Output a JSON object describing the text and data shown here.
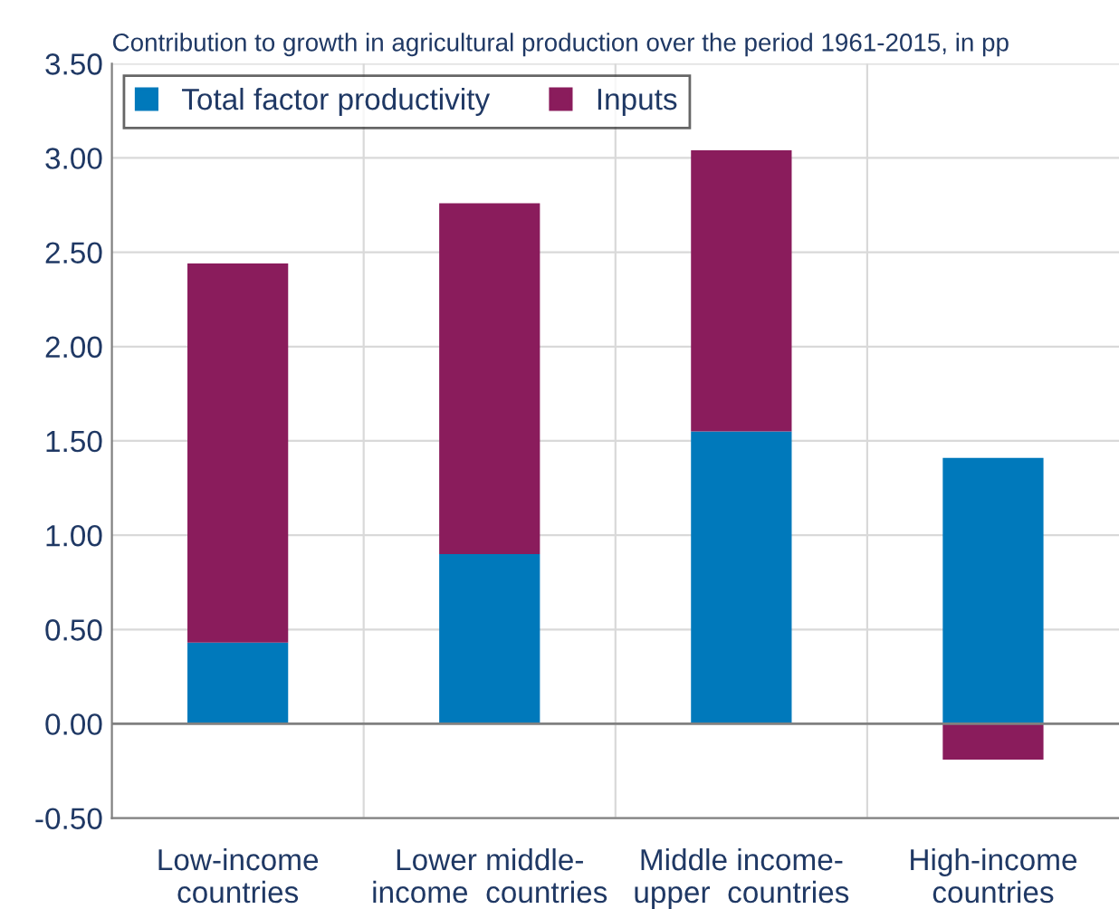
{
  "chart_data": {
    "type": "bar",
    "stacked": true,
    "title": "Contribution to growth in agricultural production over the period 1961-2015, in pp",
    "categories": [
      "Low-income\ncountries",
      "Lower middle-\nincome  countries",
      "Middle income-\nupper  countries",
      "High-income\ncountries"
    ],
    "series": [
      {
        "name": "Total factor productivity",
        "color": "#0079bb",
        "values": [
          0.43,
          0.9,
          1.55,
          1.41
        ]
      },
      {
        "name": "Inputs",
        "color": "#8a1c5c",
        "values": [
          2.01,
          1.86,
          1.49,
          -0.19
        ]
      }
    ],
    "ylim": [
      -0.5,
      3.5
    ],
    "yticks": [
      {
        "value": -0.5,
        "label": "-0.50"
      },
      {
        "value": 0,
        "label": "0.00"
      },
      {
        "value": 0.5,
        "label": "0.50"
      },
      {
        "value": 1,
        "label": "1.00"
      },
      {
        "value": 1.5,
        "label": "1.50"
      },
      {
        "value": 2,
        "label": "2.00"
      },
      {
        "value": 2.5,
        "label": "2.50"
      },
      {
        "value": 3,
        "label": "3.00"
      },
      {
        "value": 3.5,
        "label": "3.50"
      }
    ],
    "grid": true,
    "legend": "top left"
  }
}
